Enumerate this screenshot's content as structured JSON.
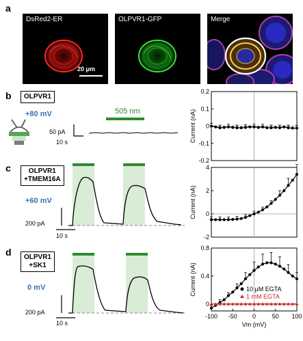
{
  "panel_a": {
    "label": "a",
    "images": [
      {
        "title": "DsRed2-ER",
        "color": "#e02020"
      },
      {
        "title": "OLPVR1-GFP",
        "color": "#30c030"
      },
      {
        "title": "Merge",
        "color": "#c060c0"
      }
    ],
    "scale_bar": "20 μm"
  },
  "panel_b": {
    "label": "b",
    "construct": "OLPVR1",
    "voltage": "+80 mV",
    "light_label": "505 nm",
    "current_scale": "50 pA",
    "time_scale": "10 s"
  },
  "panel_c": {
    "label": "c",
    "construct_line1": "OLPVR1",
    "construct_line2": "+TMEM16A",
    "voltage": "+60 mV",
    "current_scale": "200 pA",
    "time_scale": "10 s"
  },
  "panel_d": {
    "label": "d",
    "construct_line1": "OLPVR1",
    "construct_line2": "+SK1",
    "voltage": "0 mV",
    "current_scale": "200 pA",
    "time_scale": "10 s"
  },
  "chart_data": [
    {
      "type": "line",
      "panel": "b",
      "ylabel": "Current (nA)",
      "xlim": [
        -100,
        100
      ],
      "ylim": [
        -0.2,
        0.2
      ],
      "yticks": [
        "0.2",
        "0.1",
        "0",
        "-0.1",
        "-0.2"
      ],
      "x": [
        -100,
        -90,
        -80,
        -70,
        -60,
        -50,
        -40,
        -30,
        -20,
        -10,
        0,
        10,
        20,
        30,
        40,
        50,
        60,
        70,
        80,
        90,
        100
      ],
      "series": [
        {
          "values": [
            0.0,
            -0.005,
            -0.01,
            -0.008,
            -0.005,
            -0.008,
            -0.01,
            -0.01,
            -0.008,
            -0.005,
            -0.005,
            -0.008,
            -0.005,
            -0.01,
            -0.01,
            -0.008,
            -0.01,
            -0.005,
            -0.01,
            -0.012,
            -0.012
          ],
          "color": "#000000"
        }
      ]
    },
    {
      "type": "line",
      "panel": "c",
      "ylabel": "Current (nA)",
      "xlim": [
        -100,
        100
      ],
      "ylim": [
        -2,
        4
      ],
      "yticks": [
        "4",
        "2",
        "0",
        "-2"
      ],
      "x": [
        -100,
        -90,
        -80,
        -70,
        -60,
        -50,
        -40,
        -30,
        -20,
        -10,
        0,
        10,
        20,
        30,
        40,
        50,
        60,
        70,
        80,
        90,
        100
      ],
      "series": [
        {
          "values": [
            -0.5,
            -0.5,
            -0.5,
            -0.5,
            -0.5,
            -0.48,
            -0.45,
            -0.4,
            -0.3,
            -0.15,
            0.0,
            0.15,
            0.35,
            0.6,
            0.9,
            1.25,
            1.6,
            2.0,
            2.45,
            2.9,
            3.4
          ],
          "color": "#000000"
        }
      ]
    },
    {
      "type": "line",
      "panel": "d",
      "ylabel": "Current (nA)",
      "xlabel": "Vm (mV)",
      "xlim": [
        -100,
        100
      ],
      "ylim": [
        -0.1,
        0.8
      ],
      "yticks": [
        "0.8",
        "0.4",
        "0"
      ],
      "xticks": [
        "-100",
        "-50",
        "0",
        "50",
        "100"
      ],
      "x": [
        -100,
        -90,
        -80,
        -70,
        -60,
        -50,
        -40,
        -30,
        -20,
        -10,
        0,
        10,
        20,
        30,
        40,
        50,
        60,
        70,
        80,
        90,
        100
      ],
      "series": [
        {
          "name": "10 μM EGTA",
          "color": "#000000",
          "marker": "circle",
          "values": [
            -0.06,
            -0.02,
            0.02,
            0.06,
            0.12,
            0.17,
            0.23,
            0.29,
            0.36,
            0.42,
            0.48,
            0.53,
            0.57,
            0.59,
            0.59,
            0.57,
            0.54,
            0.5,
            0.45,
            0.4,
            0.36
          ]
        },
        {
          "name": "1 mM EGTA",
          "color": "#cc2a2a",
          "marker": "triangle",
          "values": [
            0.0,
            0.0,
            0.0,
            0.0,
            0.0,
            0.0,
            0.0,
            0.0,
            0.0,
            0.0,
            0.0,
            0.0,
            0.0,
            0.0,
            0.0,
            0.0,
            0.0,
            0.0,
            0.0,
            0.0,
            0.0
          ]
        }
      ]
    }
  ]
}
